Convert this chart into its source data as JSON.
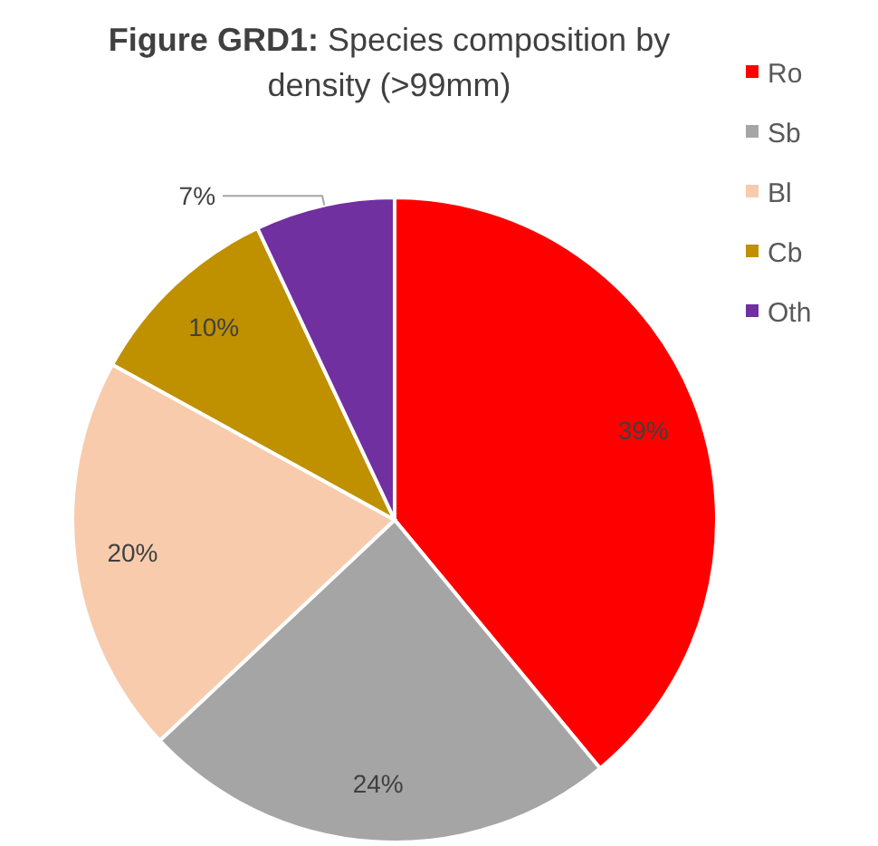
{
  "chart_data": {
    "type": "pie",
    "title": "Figure GRD1: Species composition by density (>99mm)",
    "categories": [
      "Ro",
      "Sb",
      "Bl",
      "Cb",
      "Oth"
    ],
    "values": [
      39,
      24,
      20,
      10,
      7
    ],
    "colors": [
      "#ff0000",
      "#a5a5a5",
      "#f8cbad",
      "#bf9000",
      "#7030a0"
    ],
    "value_labels": [
      "39%",
      "24%",
      "20%",
      "10%",
      "7%"
    ],
    "legend": "top right"
  }
}
